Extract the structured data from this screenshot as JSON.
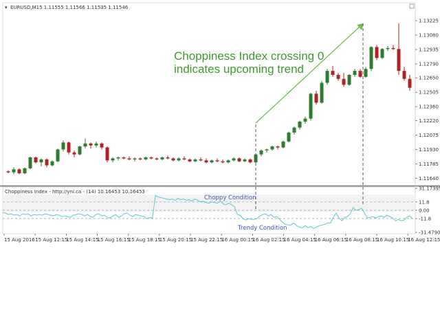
{
  "window": {
    "title": "EURUSD,M15  1.11555 1.11566 1.11535 1.11546"
  },
  "annotation": {
    "line1": "Choppiness Index crossing 0",
    "line2": "indicates upcoming trend"
  },
  "indicator": {
    "title": "Choppiness Index - http://yni.ca - (14) 10.16453 10.16453",
    "choppy_label": "Choppy Condition",
    "trendy_label": "Trendy Condition"
  },
  "colors": {
    "bull": "#2e7d2e",
    "bear": "#b22222",
    "indicator_line": "#5bc8d0",
    "annotation": "#3e9a2f",
    "condition_text": "#3a56b5"
  },
  "chart_data": [
    {
      "type": "candlestick",
      "title": "EURUSD,M15",
      "ylim": [
        1.1158,
        1.1335
      ],
      "yticks": [
        "1.13225",
        "1.13080",
        "1.12935",
        "1.12790",
        "1.12650",
        "1.12505",
        "1.12360",
        "1.12220",
        "1.12075",
        "1.11930",
        "1.11785",
        "1.11640"
      ],
      "xticks": [
        "15 Aug 2016",
        "15 Aug 12:15",
        "15 Aug 14:15",
        "15 Aug 16:15",
        "15 Aug 18:15",
        "15 Aug 20:15",
        "15 Aug 22:15",
        "16 Aug 00:15",
        "16 Aug 02:15",
        "16 Aug 04:15",
        "16 Aug 06:15",
        "16 Aug 08:15",
        "16 Aug 10:15",
        "16 Aug 12:15"
      ],
      "candles": [
        [
          1.1171,
          1.1172,
          1.1169,
          1.117
        ],
        [
          1.117,
          1.1175,
          1.1168,
          1.1173
        ],
        [
          1.1173,
          1.1174,
          1.1168,
          1.1169
        ],
        [
          1.1169,
          1.1175,
          1.1168,
          1.1174
        ],
        [
          1.1174,
          1.1186,
          1.1173,
          1.1185
        ],
        [
          1.1185,
          1.1186,
          1.1179,
          1.118
        ],
        [
          1.118,
          1.1184,
          1.1176,
          1.1183
        ],
        [
          1.1183,
          1.1184,
          1.1175,
          1.1177
        ],
        [
          1.1177,
          1.1182,
          1.1176,
          1.1181
        ],
        [
          1.1181,
          1.1194,
          1.118,
          1.1193
        ],
        [
          1.1193,
          1.1202,
          1.1191,
          1.12
        ],
        [
          1.12,
          1.1201,
          1.1188,
          1.119
        ],
        [
          1.119,
          1.1192,
          1.1185,
          1.1188
        ],
        [
          1.1188,
          1.1197,
          1.1187,
          1.1196
        ],
        [
          1.1196,
          1.1204,
          1.1194,
          1.1199
        ],
        [
          1.1199,
          1.12,
          1.1194,
          1.1197
        ],
        [
          1.1197,
          1.1201,
          1.1195,
          1.1199
        ],
        [
          1.1199,
          1.12,
          1.1193,
          1.1195
        ],
        [
          1.1195,
          1.1196,
          1.118,
          1.1182
        ],
        [
          1.1182,
          1.1185,
          1.118,
          1.1184
        ],
        [
          1.1184,
          1.1186,
          1.1182,
          1.1185
        ],
        [
          1.1185,
          1.1186,
          1.1183,
          1.1184
        ],
        [
          1.1184,
          1.1186,
          1.1182,
          1.1183
        ],
        [
          1.1183,
          1.1185,
          1.1181,
          1.1184
        ],
        [
          1.1184,
          1.1185,
          1.1182,
          1.1183
        ],
        [
          1.1183,
          1.1186,
          1.1182,
          1.1185
        ],
        [
          1.1185,
          1.1186,
          1.1183,
          1.1184
        ],
        [
          1.1184,
          1.1185,
          1.1182,
          1.1183
        ],
        [
          1.1183,
          1.1186,
          1.1182,
          1.1185
        ],
        [
          1.1185,
          1.1187,
          1.1183,
          1.1184
        ],
        [
          1.1184,
          1.1185,
          1.1181,
          1.1182
        ],
        [
          1.1182,
          1.1185,
          1.1181,
          1.1184
        ],
        [
          1.1184,
          1.1186,
          1.1182,
          1.1183
        ],
        [
          1.1183,
          1.1184,
          1.118,
          1.1181
        ],
        [
          1.1181,
          1.1184,
          1.118,
          1.1183
        ],
        [
          1.1183,
          1.1185,
          1.1181,
          1.1182
        ],
        [
          1.1182,
          1.1184,
          1.1179,
          1.118
        ],
        [
          1.118,
          1.1183,
          1.1179,
          1.1182
        ],
        [
          1.1182,
          1.1184,
          1.118,
          1.1181
        ],
        [
          1.1181,
          1.1183,
          1.1179,
          1.118
        ],
        [
          1.118,
          1.1183,
          1.1179,
          1.1182
        ],
        [
          1.1182,
          1.1185,
          1.1181,
          1.1184
        ],
        [
          1.1184,
          1.1185,
          1.118,
          1.1181
        ],
        [
          1.1181,
          1.1184,
          1.118,
          1.1183
        ],
        [
          1.1183,
          1.1184,
          1.1179,
          1.118
        ],
        [
          1.118,
          1.1189,
          1.1179,
          1.1188
        ],
        [
          1.1188,
          1.1193,
          1.1186,
          1.1192
        ],
        [
          1.1192,
          1.1194,
          1.119,
          1.1193
        ],
        [
          1.1193,
          1.1197,
          1.1192,
          1.1196
        ],
        [
          1.1196,
          1.1197,
          1.1193,
          1.1195
        ],
        [
          1.1195,
          1.1202,
          1.1194,
          1.1201
        ],
        [
          1.1201,
          1.1211,
          1.12,
          1.121
        ],
        [
          1.121,
          1.1216,
          1.1208,
          1.1215
        ],
        [
          1.1215,
          1.1222,
          1.1213,
          1.1221
        ],
        [
          1.1221,
          1.1226,
          1.1219,
          1.1224
        ],
        [
          1.1224,
          1.125,
          1.1222,
          1.1249
        ],
        [
          1.1249,
          1.1252,
          1.1238,
          1.124
        ],
        [
          1.124,
          1.1262,
          1.1239,
          1.126
        ],
        [
          1.126,
          1.1274,
          1.1258,
          1.1272
        ],
        [
          1.1272,
          1.1277,
          1.1266,
          1.1268
        ],
        [
          1.1268,
          1.127,
          1.1262,
          1.1264
        ],
        [
          1.1264,
          1.127,
          1.1256,
          1.1258
        ],
        [
          1.1258,
          1.1269,
          1.1257,
          1.1268
        ],
        [
          1.1268,
          1.1274,
          1.1266,
          1.1272
        ],
        [
          1.1272,
          1.1274,
          1.1265,
          1.1266
        ],
        [
          1.1266,
          1.1276,
          1.1265,
          1.1274
        ],
        [
          1.1274,
          1.1297,
          1.1272,
          1.1296
        ],
        [
          1.1296,
          1.1298,
          1.1283,
          1.1285
        ],
        [
          1.1285,
          1.1295,
          1.1284,
          1.1294
        ],
        [
          1.1294,
          1.1297,
          1.1292,
          1.1295
        ],
        [
          1.1295,
          1.1298,
          1.1293,
          1.1294
        ],
        [
          1.1294,
          1.132,
          1.1268,
          1.1272
        ],
        [
          1.1272,
          1.1276,
          1.1262,
          1.1264
        ],
        [
          1.1264,
          1.1268,
          1.1252,
          1.1255
        ]
      ]
    },
    {
      "type": "line",
      "title": "Choppiness Index",
      "ylim": [
        -31.47904,
        31.17395
      ],
      "yticks": [
        "31.17395",
        "11.8",
        "0.00",
        "-11.8",
        "-31.47904"
      ],
      "levels": [
        11.8,
        0,
        -11.8
      ],
      "values": [
        -3,
        -4,
        -6,
        -5,
        -7,
        -6,
        -8,
        -5,
        -6,
        -5,
        -8,
        -6,
        -7,
        -6,
        -7,
        -5,
        -6,
        -7,
        -8,
        -6,
        -7,
        -9,
        -8,
        -9,
        -10,
        -7,
        -6,
        -5,
        -6,
        -8,
        -6,
        -9,
        -10,
        -6,
        -5,
        -8,
        -7,
        -10,
        -11,
        -8,
        -6,
        -10,
        -8,
        -5,
        -4,
        -7,
        -9,
        -6,
        -7,
        -8,
        -9,
        -12,
        -10,
        -11,
        21,
        19,
        18,
        17,
        16,
        15,
        16,
        14,
        17,
        15,
        16,
        14,
        15,
        13,
        16,
        14,
        12,
        13,
        11,
        10,
        12,
        11,
        10,
        13,
        9,
        8,
        10,
        8,
        5,
        -6,
        -7,
        -12,
        -14,
        -12,
        -13,
        -13,
        -12,
        -8,
        -6,
        -5,
        -8,
        -6,
        -10,
        -9,
        -13,
        -17,
        -20,
        -21,
        -21,
        -18,
        -22,
        -24,
        -25,
        -22,
        -25,
        -23,
        -26,
        -24,
        -22,
        -21,
        -20,
        -18,
        -18,
        -10,
        -4,
        -11,
        -15,
        -10,
        -9,
        -5,
        4,
        0,
        1,
        3,
        -4,
        -11,
        -10,
        -9,
        -11,
        -9,
        -8,
        -10,
        -7,
        -9,
        -11,
        -15,
        -13,
        -15,
        -14,
        -10,
        -8,
        -12
      ]
    }
  ]
}
